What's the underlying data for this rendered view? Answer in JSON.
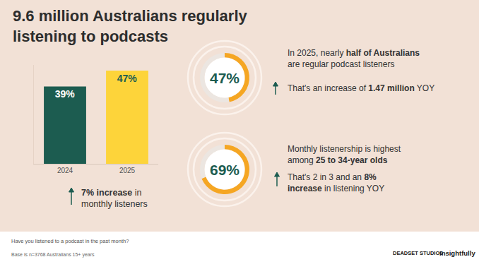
{
  "title": [
    "9.6 million Australians regularly",
    "listening to podcasts"
  ],
  "chart_data": [
    {
      "type": "bar",
      "categories": [
        "2024",
        "2025"
      ],
      "values": [
        39,
        47
      ],
      "value_labels": [
        "39%",
        "47%"
      ],
      "colors": [
        "#1c5c50",
        "#fdd43a"
      ],
      "ylim": [
        0,
        50
      ],
      "yticks": [],
      "grid": false,
      "data_labels": true,
      "tick_labels": "x",
      "note": {
        "lines": [
          {
            "text": "7% increase in",
            "bold": "7% increase"
          },
          {
            "text": "monthly listeners"
          }
        ]
      }
    },
    {
      "type": "pie",
      "values": [
        47,
        53
      ],
      "colors": [
        "#f5a623",
        "#ece6e1"
      ],
      "annotation": "47%",
      "notes": [
        {
          "lines": [
            {
              "text": "In 2025, nearly half of Australians",
              "bold": "half of Australians"
            },
            {
              "text": "are regular podcast listeners"
            }
          ]
        },
        {
          "lines": [
            {
              "text": "That's an increase of 1.47 million YOY",
              "bold": "1.47 million"
            }
          ]
        }
      ]
    },
    {
      "type": "pie",
      "values": [
        69,
        31
      ],
      "colors": [
        "#f5a623",
        "#ece6e1"
      ],
      "annotation": "69%",
      "notes": [
        {
          "lines": [
            {
              "text": "Monthly listenership is highest"
            },
            {
              "text": "among 25 to 34-year olds",
              "bold": "25 to 34-year olds"
            }
          ]
        },
        {
          "lines": [
            {
              "text": "That's 2 in 3 and an 8%",
              "bold": "8%"
            },
            {
              "text": "increase in listening YOY",
              "bold": "increase"
            }
          ]
        }
      ]
    }
  ],
  "footer": {
    "question": "Have you listened to a podcast in the past month?",
    "base": "Base is n=3768 Australians 15+ years",
    "logos": [
      "DEADSET STUDIOS",
      "Insightfully"
    ]
  }
}
